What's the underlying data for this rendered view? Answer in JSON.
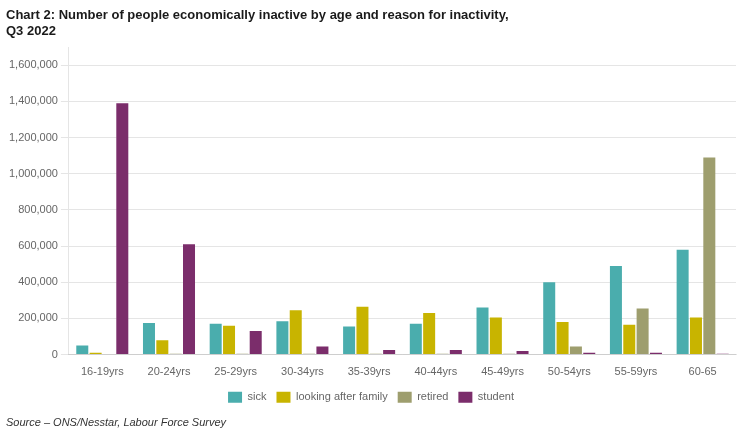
{
  "chart_data": {
    "type": "bar",
    "title": "Chart 2: Number of people economically inactive by age and reason for inactivity,\nQ3 2022",
    "source": "Source – ONS/Nesstar, Labour Force Survey",
    "categories": [
      "16-19yrs",
      "20-24yrs",
      "25-29yrs",
      "30-34yrs",
      "35-39yrs",
      "40-44yrs",
      "45-49yrs",
      "50-54yrs",
      "55-59yrs",
      "60-65"
    ],
    "series": [
      {
        "name": "sick",
        "color": "#4AADAD",
        "values": [
          50000,
          175000,
          170000,
          185000,
          155000,
          170000,
          260000,
          400000,
          490000,
          580000
        ]
      },
      {
        "name": "looking after family",
        "color": "#C8B400",
        "values": [
          10000,
          80000,
          160000,
          245000,
          265000,
          230000,
          205000,
          180000,
          165000,
          205000
        ]
      },
      {
        "name": "retired",
        "color": "#9E9E6E",
        "values": [
          0,
          5000,
          5000,
          5000,
          5000,
          5000,
          5000,
          45000,
          255000,
          1090000
        ]
      },
      {
        "name": "student",
        "color": "#7B2D6B",
        "values": [
          1390000,
          610000,
          130000,
          45000,
          25000,
          25000,
          20000,
          10000,
          10000,
          5000
        ]
      }
    ],
    "ylim": [
      0,
      1700000
    ],
    "yticks": [
      0,
      {
        "value": 200000,
        "label": "200,000"
      },
      {
        "value": 400000,
        "label": "400,000"
      },
      {
        "value": 600000,
        "label": "600,000"
      },
      {
        "value": 800000,
        "label": "800,000"
      },
      {
        "value": 1000000,
        "label": "1,000,000"
      },
      {
        "value": 1200000,
        "label": "1,200,000"
      },
      {
        "value": 1400000,
        "label": "1,400,000"
      },
      {
        "value": 1600000,
        "label": "1,600,000"
      }
    ],
    "grid": true,
    "legend": "bottom"
  }
}
